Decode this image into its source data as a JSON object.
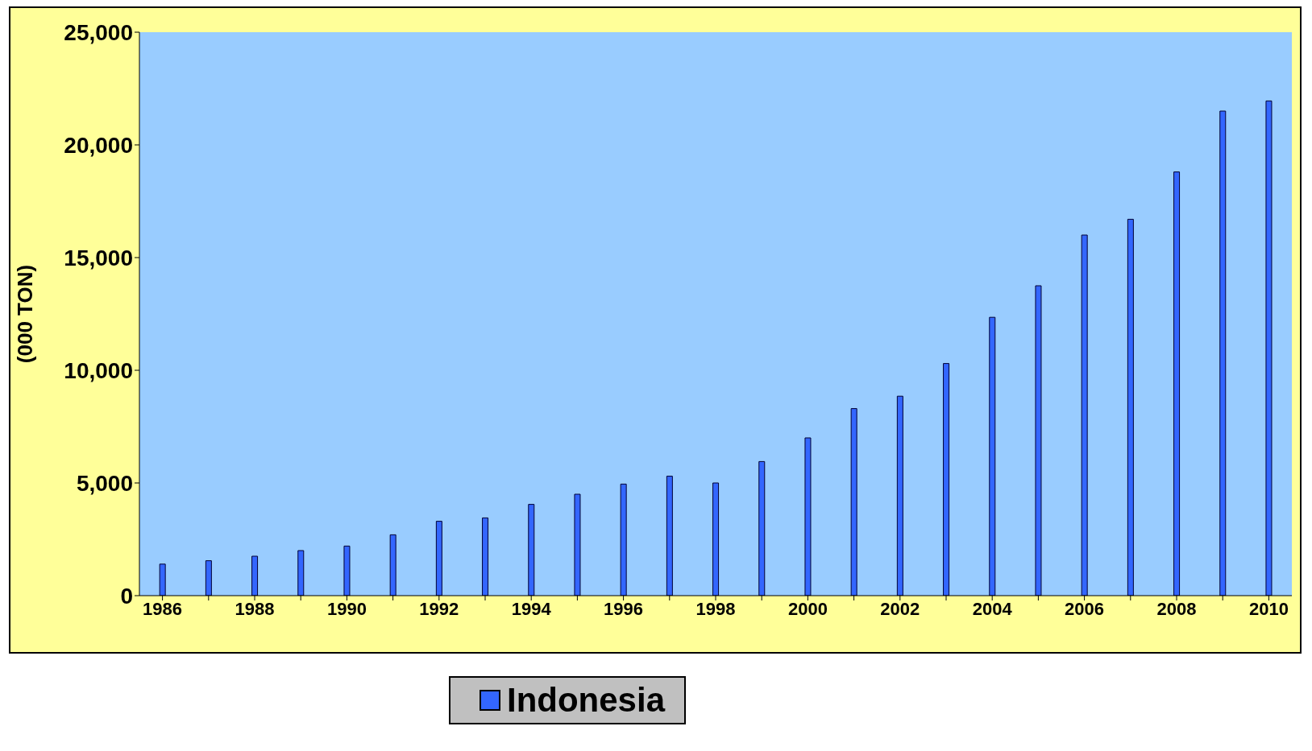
{
  "chart_data": {
    "type": "bar",
    "ylabel": "(000 TON)",
    "categories": [
      "1986",
      null,
      "1988",
      null,
      "1990",
      null,
      "1992",
      null,
      "1994",
      null,
      "1996",
      null,
      "1998",
      null,
      "2000",
      null,
      "2002",
      null,
      "2004",
      null,
      "2006",
      null,
      "2008",
      null,
      "2010"
    ],
    "series": [
      {
        "name": "Indonesia",
        "color": "#3366ff",
        "values": [
          1400,
          1550,
          1750,
          2000,
          2200,
          2700,
          3300,
          3450,
          4050,
          4500,
          4950,
          5300,
          5000,
          5950,
          7000,
          8300,
          8850,
          10300,
          12350,
          13750,
          16000,
          16700,
          18800,
          21500,
          21950
        ]
      }
    ],
    "ylim": [
      0,
      25000
    ],
    "yticks": [
      {
        "value": 0,
        "label": "0"
      },
      {
        "value": 5000,
        "label": "5,000"
      },
      {
        "value": 10000,
        "label": "10,000"
      },
      {
        "value": 15000,
        "label": "15,000"
      },
      {
        "value": 20000,
        "label": "20,000"
      },
      {
        "value": 25000,
        "label": "25,000"
      }
    ],
    "grid": false,
    "legend": "bottom"
  }
}
